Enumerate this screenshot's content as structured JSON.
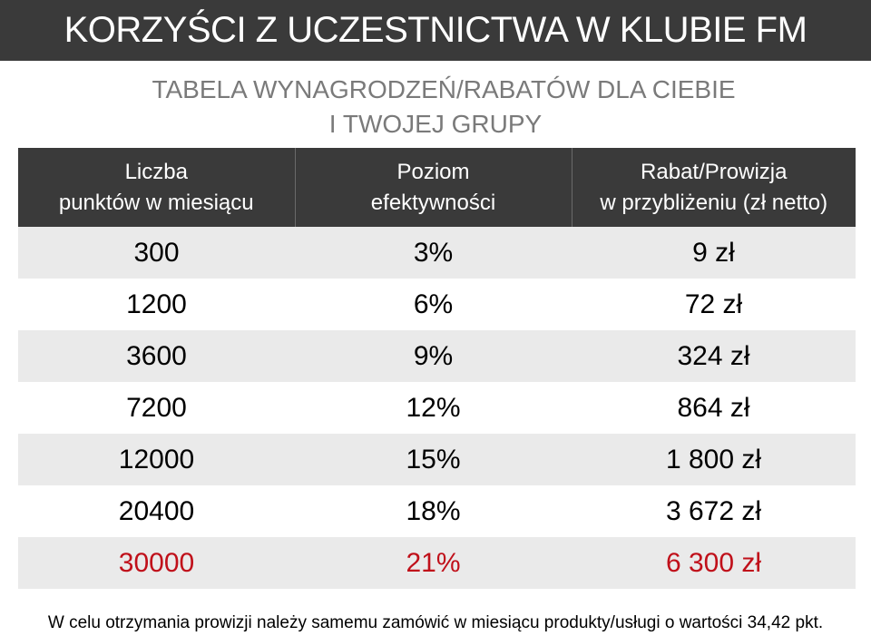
{
  "title": "KORZYŚCI Z UCZESTNICTWA W KLUBIE FM",
  "subtitle": {
    "line1": "TABELA WYNAGRODZEŃ/RABATÓW DLA CIEBIE",
    "line2": "I TWOJEJ GRUPY"
  },
  "table": {
    "headers": [
      {
        "line1": "Liczba",
        "line2": "punktów w miesiącu"
      },
      {
        "line1": "Poziom",
        "line2": "efektywności"
      },
      {
        "line1": "Rabat/Prowizja",
        "line2": "w przybliżeniu (zł netto)"
      }
    ],
    "rows": [
      {
        "points": "300",
        "level": "3%",
        "reward": "9 zł"
      },
      {
        "points": "1200",
        "level": "6%",
        "reward": "72 zł"
      },
      {
        "points": "3600",
        "level": "9%",
        "reward": "324 zł"
      },
      {
        "points": "7200",
        "level": "12%",
        "reward": "864 zł"
      },
      {
        "points": "12000",
        "level": "15%",
        "reward": "1 800 zł"
      },
      {
        "points": "20400",
        "level": "18%",
        "reward": "3 672 zł"
      },
      {
        "points": "30000",
        "level": "21%",
        "reward": "6 300 zł"
      }
    ]
  },
  "footnote": "W celu otrzymania prowizji należy samemu zamówić w miesiącu produkty/usługi  o wartości 34,42 pkt.",
  "colors": {
    "header_bg": "#3a3a3a",
    "subtitle_text": "#7a7a7a",
    "row_shade": "#eaeaea",
    "highlight_text": "#c0101a"
  }
}
